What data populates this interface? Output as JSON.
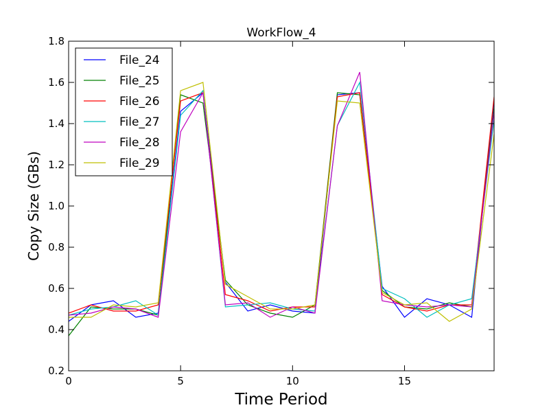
{
  "chart_data": {
    "type": "line",
    "title": "WorkFlow_4",
    "xlabel": "Time Period",
    "ylabel": "Copy Size (GBs)",
    "xlim": [
      0,
      19
    ],
    "ylim": [
      0.2,
      1.8
    ],
    "xticks": [
      0,
      5,
      10,
      15
    ],
    "xtick_labels": [
      "0",
      "5",
      "10",
      "15"
    ],
    "yticks": [
      0.2,
      0.4,
      0.6,
      0.8,
      1.0,
      1.2,
      1.4,
      1.6,
      1.8
    ],
    "ytick_labels": [
      "0.2",
      "0.4",
      "0.6",
      "0.8",
      "1.0",
      "1.2",
      "1.4",
      "1.6",
      "1.8"
    ],
    "grid": false,
    "legend_position": "top-left",
    "x": [
      0,
      1,
      2,
      3,
      4,
      5,
      6,
      7,
      8,
      9,
      10,
      11,
      12,
      13,
      14,
      15,
      16,
      17,
      18,
      19
    ],
    "series": [
      {
        "name": "File_24",
        "color": "#0000ff",
        "values": [
          0.44,
          0.52,
          0.54,
          0.46,
          0.48,
          1.46,
          1.55,
          0.63,
          0.49,
          0.52,
          0.49,
          0.48,
          1.54,
          1.55,
          0.61,
          0.46,
          0.55,
          0.52,
          0.46,
          1.52
        ]
      },
      {
        "name": "File_25",
        "color": "#008000",
        "values": [
          0.37,
          0.51,
          0.5,
          0.5,
          0.47,
          1.54,
          1.5,
          0.64,
          0.52,
          0.48,
          0.46,
          0.52,
          1.55,
          1.54,
          0.59,
          0.51,
          0.5,
          0.53,
          0.51,
          1.48
        ]
      },
      {
        "name": "File_26",
        "color": "#ff0000",
        "values": [
          0.48,
          0.52,
          0.49,
          0.49,
          0.52,
          1.51,
          1.55,
          0.57,
          0.54,
          0.49,
          0.51,
          0.51,
          1.53,
          1.55,
          0.57,
          0.51,
          0.49,
          0.52,
          0.52,
          1.53
        ]
      },
      {
        "name": "File_27",
        "color": "#00bfbf",
        "values": [
          0.47,
          0.5,
          0.51,
          0.54,
          0.47,
          1.44,
          1.56,
          0.51,
          0.52,
          0.53,
          0.5,
          0.49,
          1.39,
          1.6,
          0.6,
          0.55,
          0.46,
          0.52,
          0.55,
          1.42
        ]
      },
      {
        "name": "File_28",
        "color": "#bf00bf",
        "values": [
          0.47,
          0.48,
          0.51,
          0.5,
          0.46,
          1.36,
          1.55,
          0.52,
          0.53,
          0.46,
          0.51,
          0.48,
          1.39,
          1.65,
          0.54,
          0.52,
          0.51,
          0.52,
          0.51,
          1.46
        ]
      },
      {
        "name": "File_29",
        "color": "#bfbf00",
        "values": [
          0.46,
          0.46,
          0.52,
          0.51,
          0.53,
          1.56,
          1.6,
          0.62,
          0.56,
          0.5,
          0.5,
          0.52,
          1.51,
          1.5,
          0.58,
          0.52,
          0.53,
          0.44,
          0.5,
          1.35
        ]
      }
    ]
  }
}
